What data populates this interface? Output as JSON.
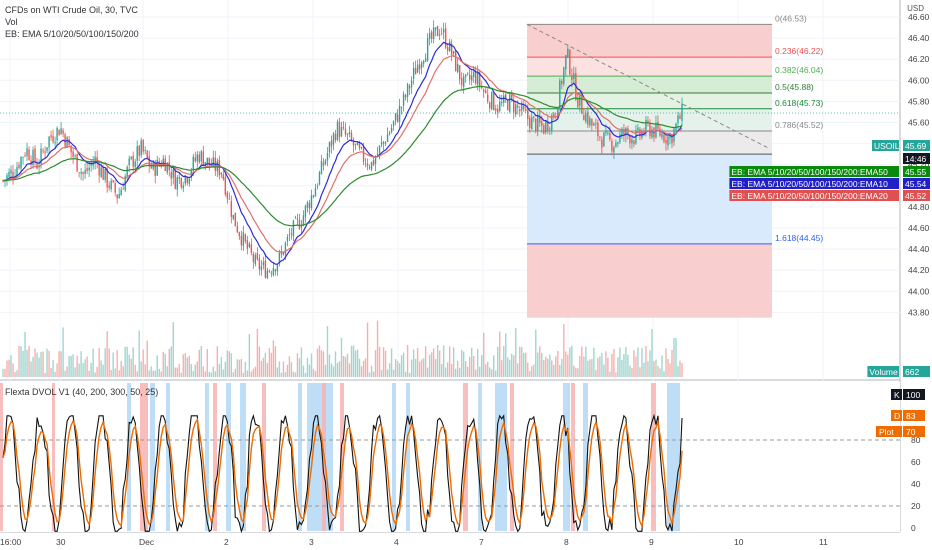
{
  "header": {
    "symbol_line": "CFDs on WTI Crude Oil, 30, TVC",
    "vol_label": "Vol",
    "ema_legend": "EB: EMA 5/10/20/50/100/150/200"
  },
  "colors": {
    "up": "#26a69a",
    "down": "#ef5350",
    "ema_fast": "#2b2bd6",
    "ema_mid": "#e0706a",
    "ema_slow": "#2e8b2e",
    "fib_red": "#f8c6c6",
    "fib_green": "#cfe9cf",
    "fib_grey": "#e8e8e8",
    "fib_blue": "#d2e6fb",
    "osc_k": "#111111",
    "osc_d": "#ef6c00"
  },
  "price_axis": {
    "currency": "USD",
    "ticks": [
      "46.60",
      "46.40",
      "46.20",
      "46.00",
      "45.80",
      "45.60",
      "45.40",
      "45.20",
      "45.00",
      "44.80",
      "44.60",
      "44.40",
      "44.20",
      "44.00",
      "43.80"
    ],
    "min": 43.7,
    "max": 46.7
  },
  "price_labels": [
    {
      "name": "usoil-price-label",
      "text": "USOIL",
      "value": "45.69",
      "bg": "#26a69a"
    },
    {
      "name": "time-label",
      "text": "",
      "value": "14:46",
      "bg": "#131722"
    },
    {
      "name": "ema50-label",
      "text": "EB: EMA 5/10/20/50/100/150/200:EMA50",
      "value": "45.55",
      "bg": "#0a8a0a"
    },
    {
      "name": "ema10-label",
      "text": "EB: EMA 5/10/20/50/100/150/200:EMA10",
      "value": "45.54",
      "bg": "#2020c8"
    },
    {
      "name": "ema20-label",
      "text": "EB: EMA 5/10/20/50/100/150/200:EMA20",
      "value": "45.52",
      "bg": "#e05050"
    },
    {
      "name": "volume-label",
      "text": "Volume",
      "value": "662",
      "bg": "#26a69a"
    }
  ],
  "fib_levels": [
    {
      "ratio": "0(46.53)",
      "price": 46.53,
      "color": "#888888"
    },
    {
      "ratio": "0.236(46.22)",
      "price": 46.22,
      "color": "#ef5350"
    },
    {
      "ratio": "0.382(46.04)",
      "price": 46.04,
      "color": "#4caf50"
    },
    {
      "ratio": "0.5(45.88)",
      "price": 45.88,
      "color": "#2e7d32"
    },
    {
      "ratio": "0.618(45.73)",
      "price": 45.73,
      "color": "#1b8a3a"
    },
    {
      "ratio": "0.786(45.52)",
      "price": 45.52,
      "color": "#888888"
    },
    {
      "ratio": "1.618(44.45)",
      "price": 44.45,
      "color": "#2962ff"
    }
  ],
  "oscillator": {
    "title": "Flexta DVOL V1 (40, 200, 300, 50, 25)",
    "ticks": [
      "100",
      "80",
      "60",
      "40",
      "20",
      "0"
    ],
    "labels": [
      {
        "name": "k-label",
        "text": "K",
        "value": "100",
        "bg": "#131722"
      },
      {
        "name": "d-label",
        "text": "D",
        "value": "83",
        "bg": "#ef6c00"
      },
      {
        "name": "plot-label",
        "text": "Plot",
        "value": "70",
        "bg": "#ef6c00"
      }
    ]
  },
  "time_axis": {
    "labels": [
      "16:00",
      "30",
      "Dec",
      "2",
      "3",
      "4",
      "7",
      "8",
      "9",
      "10",
      "11"
    ]
  },
  "chart_data": {
    "type": "candlestick",
    "title": "CFDs on WTI Crude Oil, 30, TVC",
    "xlabel": "",
    "ylabel": "",
    "ylim": [
      43.7,
      46.7
    ],
    "time_labels": [
      "16:00",
      "30",
      "Dec",
      "2",
      "3",
      "4",
      "7",
      "8",
      "9",
      "10",
      "11"
    ],
    "close_path": [
      45.05,
      45.15,
      45.35,
      45.2,
      45.45,
      45.55,
      45.3,
      45.1,
      45.25,
      45.05,
      44.9,
      45.2,
      45.35,
      45.15,
      45.25,
      45.05,
      45.1,
      45.3,
      45.2,
      45.15,
      44.7,
      44.45,
      44.25,
      44.2,
      44.3,
      44.55,
      44.7,
      44.95,
      45.25,
      45.55,
      45.45,
      45.3,
      45.2,
      45.4,
      45.6,
      45.85,
      46.15,
      46.35,
      46.5,
      46.25,
      45.95,
      46.05,
      45.85,
      45.75,
      45.8,
      45.7,
      45.6,
      45.55,
      45.7,
      46.25,
      45.8,
      45.6,
      45.45,
      45.4,
      45.5,
      45.45,
      45.55,
      45.5,
      45.45,
      45.69
    ],
    "fibonacci": {
      "start_price": 46.53,
      "levels": [
        {
          "ratio": "0",
          "price": 46.53
        },
        {
          "ratio": "0.236",
          "price": 46.22
        },
        {
          "ratio": "0.382",
          "price": 46.04
        },
        {
          "ratio": "0.5",
          "price": 45.88
        },
        {
          "ratio": "0.618",
          "price": 45.73
        },
        {
          "ratio": "0.786",
          "price": 45.52
        },
        {
          "ratio": "1.618",
          "price": 44.45
        }
      ]
    },
    "last": {
      "price": 45.69,
      "ema50": 45.55,
      "ema10": 45.54,
      "ema20": 45.52,
      "volume": 662
    },
    "oscillator": {
      "k": 100,
      "d": 83,
      "plot": 70,
      "ylim": [
        0,
        100
      ],
      "levels": [
        80,
        20
      ]
    }
  }
}
